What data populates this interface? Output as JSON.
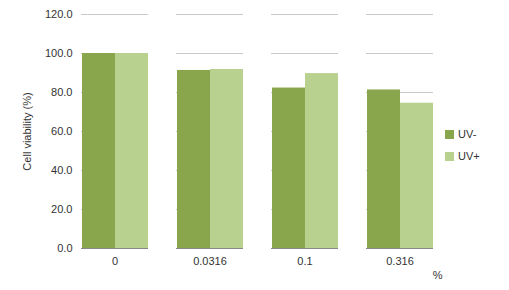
{
  "chart_data": {
    "type": "bar",
    "categories": [
      "0",
      "0.0316",
      "0.1",
      "0.316"
    ],
    "series": [
      {
        "name": "UV-",
        "color": "#8aa64c",
        "values": [
          100.0,
          91.3,
          82.3,
          81.3
        ]
      },
      {
        "name": "UV+",
        "color": "#b9d18f",
        "values": [
          100.0,
          91.8,
          89.7,
          74.5
        ]
      }
    ],
    "xlabel": "%",
    "ylabel": "Cell viability (%)",
    "ylim": [
      0,
      120
    ],
    "yticks": [
      {
        "value": 0,
        "label": "0.0"
      },
      {
        "value": 20,
        "label": "20.0"
      },
      {
        "value": 40,
        "label": "40.0"
      },
      {
        "value": 60,
        "label": "60.0"
      },
      {
        "value": 80,
        "label": "80.0"
      },
      {
        "value": 100,
        "label": "100.0"
      },
      {
        "value": 120,
        "label": "120.0"
      }
    ],
    "grid": true,
    "legend": "right"
  }
}
